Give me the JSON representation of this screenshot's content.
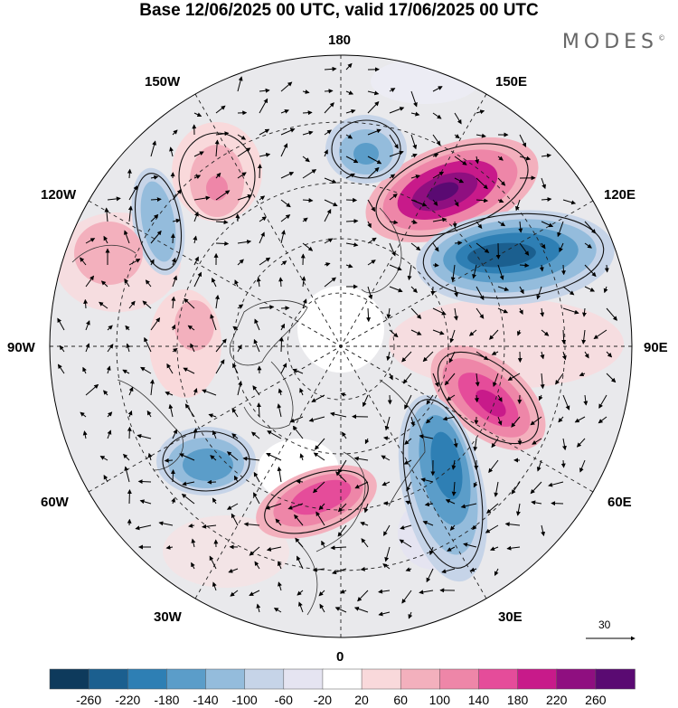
{
  "title": "Base 12/06/2025 00 UTC, valid 17/06/2025 00 UTC",
  "brand": "MODES",
  "brand_mark": "©",
  "lon_labels": {
    "l180": "180",
    "l150W": "150W",
    "l150E": "150E",
    "l120W": "120W",
    "l120E": "120E",
    "l90W": "90W",
    "l90E": "90E",
    "l60W": "60W",
    "l60E": "60E",
    "l30W": "30W",
    "l30E": "30E",
    "l0": "0"
  },
  "vector_scale_label": "30",
  "colorbar": {
    "colors": [
      "#0e3a5c",
      "#1b5f8f",
      "#2e7fb4",
      "#5b9dc9",
      "#94bcdc",
      "#c6d4e8",
      "#e5e4f1",
      "#ffffff",
      "#f9d9db",
      "#f3b0bd",
      "#ee86a8",
      "#e54c9a",
      "#c81a8a",
      "#8f0f80",
      "#5a0a72"
    ],
    "ticks": [
      "-260",
      "-220",
      "-180",
      "-140",
      "-100",
      "-60",
      "-20",
      "20",
      "60",
      "100",
      "140",
      "180",
      "220",
      "260"
    ]
  }
}
